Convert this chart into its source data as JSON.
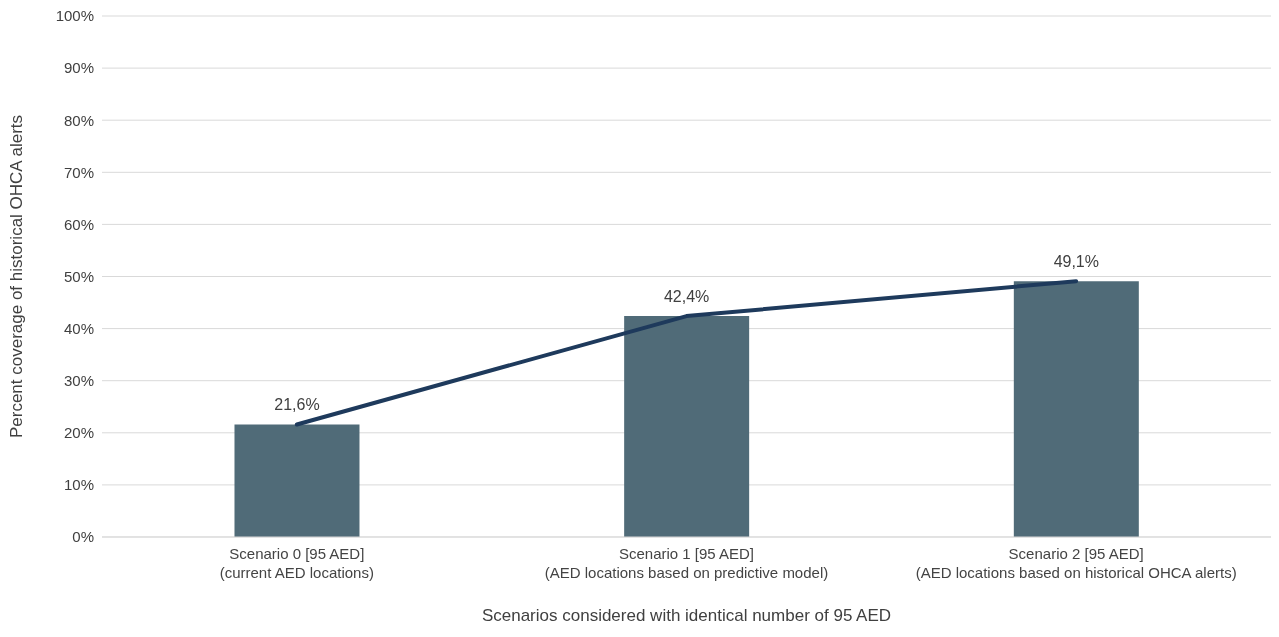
{
  "chart_data": {
    "type": "bar",
    "xlabel": "Scenarios considered with identical number of 95 AED",
    "ylabel": "Percent coverage of historical OHCA alerts",
    "categories": [
      "Scenario 0 [95 AED]\n(current AED locations)",
      "Scenario 1 [95 AED]\n(AED locations based on predictive model)",
      "Scenario 2 [95 AED]\n(AED locations based on historical OHCA alerts)"
    ],
    "series": [
      {
        "color": "#506b78",
        "values": [
          21.6,
          42.4,
          49.1
        ],
        "value_labels": [
          "21,6%",
          "42,4%",
          "49,1%"
        ]
      },
      {
        "type": "line",
        "color": "#1e3a5c",
        "values": [
          21.6,
          42.4,
          49.1
        ]
      }
    ],
    "ylim": [
      0,
      100
    ],
    "yticks": [
      {
        "value": 0,
        "label": "0%"
      },
      {
        "value": 10,
        "label": "10%"
      },
      {
        "value": 20,
        "label": "20%"
      },
      {
        "value": 30,
        "label": "30%"
      },
      {
        "value": 40,
        "label": "40%"
      },
      {
        "value": 50,
        "label": "50%"
      },
      {
        "value": 60,
        "label": "60%"
      },
      {
        "value": 70,
        "label": "70%"
      },
      {
        "value": 80,
        "label": "80%"
      },
      {
        "value": 90,
        "label": "90%"
      },
      {
        "value": 100,
        "label": "100%"
      }
    ],
    "grid": "y",
    "marker": "none",
    "line_style": "solid",
    "legend": false
  }
}
